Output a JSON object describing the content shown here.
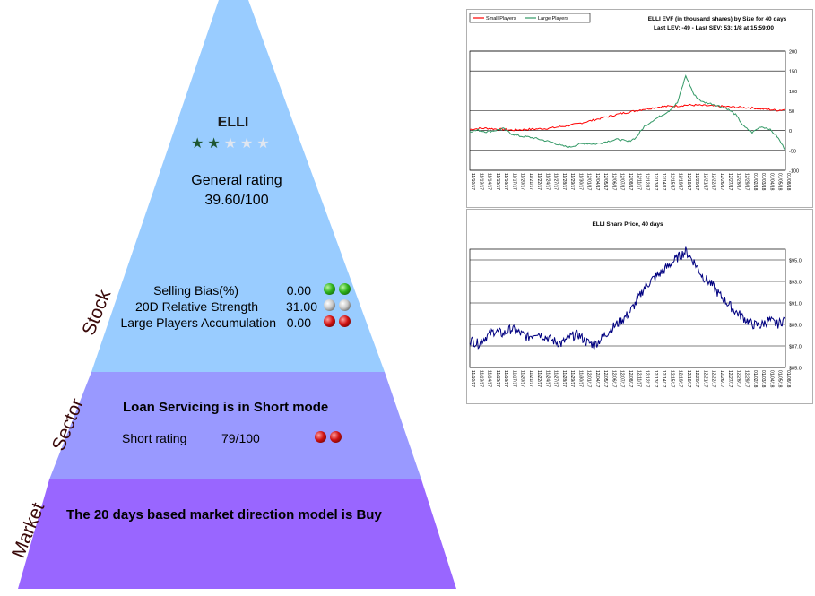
{
  "pyramid": {
    "layers": {
      "stock_label": "Stock",
      "sector_label": "Sector",
      "market_label": "Market"
    },
    "colors": {
      "stock": "#99ccff",
      "sector": "#9999ff",
      "market": "#9966ff"
    },
    "stock": {
      "ticker": "ELLI",
      "rating_stars": 2,
      "rating_stars_max": 5,
      "general_rating_label": "General rating",
      "general_rating_value": "39.60/100",
      "metrics": [
        {
          "label": "Selling Bias(%)",
          "value": "0.00",
          "balls": [
            "green",
            "green"
          ]
        },
        {
          "label": "20D Relative Strength",
          "value": "31.00",
          "balls": [
            "gray",
            "gray"
          ]
        },
        {
          "label": "Large Players Accumulation",
          "value": "0.00",
          "balls": [
            "red",
            "red"
          ]
        }
      ]
    },
    "sector": {
      "title": "Loan Servicing is in Short mode",
      "short_label": "Short rating",
      "short_value": "79/100",
      "balls": [
        "red",
        "red"
      ]
    },
    "market": {
      "title": "The 20 days based market direction model is Buy"
    }
  },
  "chart_data": [
    {
      "type": "line",
      "title": "ELLI EVF (in thousand shares) by Size for 40 days",
      "subtitle": "Last LEV: -49 - Last SEV: 53; 1/8 at 15:59:00",
      "ylim": [
        -100,
        200
      ],
      "yticks": [
        -100,
        -50,
        0,
        50,
        100,
        150,
        200
      ],
      "grid": true,
      "legend_position": "top-left",
      "x": [
        "11/10/17",
        "11/13/17",
        "11/14/17",
        "11/15/17",
        "11/16/17",
        "11/17/17",
        "11/20/17",
        "11/21/17",
        "11/22/17",
        "11/24/17",
        "11/27/17",
        "11/28/17",
        "11/29/17",
        "11/30/17",
        "12/01/17",
        "12/04/17",
        "12/05/17",
        "12/06/17",
        "12/07/17",
        "12/08/17",
        "12/11/17",
        "12/12/17",
        "12/13/17",
        "12/14/17",
        "12/15/17",
        "12/18/17",
        "12/19/17",
        "12/20/17",
        "12/21/17",
        "12/22/17",
        "12/26/17",
        "12/27/17",
        "12/28/17",
        "12/29/17",
        "01/02/18",
        "01/03/18",
        "01/04/18",
        "01/05/18",
        "01/08/18"
      ],
      "series": [
        {
          "name": "Small Players",
          "color": "#ff0000",
          "values": [
            3,
            5,
            6,
            4,
            3,
            1,
            2,
            3,
            4,
            5,
            7,
            10,
            13,
            17,
            22,
            27,
            32,
            37,
            42,
            46,
            50,
            54,
            57,
            60,
            61,
            62,
            64,
            64,
            63,
            62,
            61,
            60,
            59,
            58,
            57,
            55,
            53,
            51,
            53
          ]
        },
        {
          "name": "Large Players",
          "color": "#339966",
          "values": [
            -2,
            1,
            -3,
            0,
            5,
            -8,
            -14,
            -16,
            -20,
            -25,
            -30,
            -38,
            -42,
            -35,
            -32,
            -34,
            -30,
            -25,
            -22,
            -28,
            -18,
            10,
            25,
            37,
            50,
            70,
            138,
            90,
            72,
            68,
            62,
            55,
            40,
            10,
            -5,
            10,
            5,
            -15,
            -49
          ]
        }
      ]
    },
    {
      "type": "line",
      "title": "ELLI Share Price, 40 days",
      "ylim": [
        85.0,
        96.0
      ],
      "yticks": [
        "$85.0",
        "$87.0",
        "$89.0",
        "$91.0",
        "$93.0",
        "$95.0"
      ],
      "grid": true,
      "x": [
        "11/10/17",
        "11/13/17",
        "11/14/17",
        "11/15/17",
        "11/16/17",
        "11/17/17",
        "11/20/17",
        "11/21/17",
        "11/22/17",
        "11/24/17",
        "11/27/17",
        "11/28/17",
        "11/29/17",
        "11/30/17",
        "12/01/17",
        "12/04/17",
        "12/05/17",
        "12/06/17",
        "12/07/17",
        "12/08/17",
        "12/11/17",
        "12/12/17",
        "12/13/17",
        "12/14/17",
        "12/15/17",
        "12/18/17",
        "12/19/17",
        "12/20/17",
        "12/21/17",
        "12/22/17",
        "12/26/17",
        "12/27/17",
        "12/28/17",
        "12/29/17",
        "01/02/18",
        "01/03/18",
        "01/04/18",
        "01/05/18",
        "01/08/18"
      ],
      "series": [
        {
          "name": "",
          "color": "#000080",
          "values": [
            87.6,
            87.2,
            87.9,
            88.4,
            88.1,
            88.6,
            88.2,
            87.8,
            88.3,
            87.9,
            87.5,
            87.2,
            87.8,
            88.1,
            87.4,
            87.1,
            87.8,
            88.6,
            89.2,
            89.9,
            91.0,
            92.4,
            93.2,
            93.8,
            94.5,
            95.2,
            95.8,
            94.8,
            93.5,
            92.8,
            91.8,
            91.0,
            90.2,
            89.6,
            89.0,
            88.9,
            89.4,
            89.0,
            89.5
          ]
        }
      ]
    }
  ]
}
